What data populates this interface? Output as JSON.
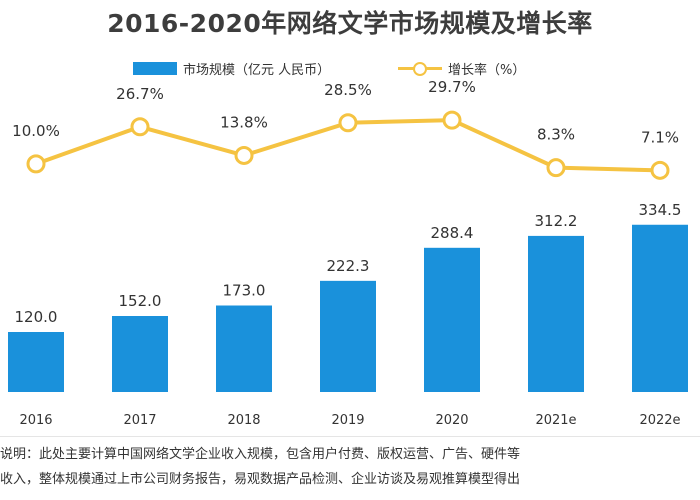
{
  "title": "2016-2020年网络文学市场规模及增长率",
  "legend": {
    "bar_label": "市场规模（亿元 人民币）",
    "line_label": "增长率（%）"
  },
  "colors": {
    "bar": "#1a91db",
    "line": "#f5c342",
    "text": "#333333"
  },
  "chart_data": {
    "type": "bar",
    "title": "2016-2020年网络文学市场规模及增长率",
    "categories": [
      "2016",
      "2017",
      "2018",
      "2019",
      "2020",
      "2021e",
      "2022e"
    ],
    "series": [
      {
        "name": "市场规模（亿元 人民币）",
        "type": "bar",
        "values": [
          120.0,
          152.0,
          173.0,
          222.3,
          288.4,
          312.2,
          334.5
        ],
        "labels": [
          "120.0",
          "152.0",
          "173.0",
          "222.3",
          "288.4",
          "312.2",
          "334.5"
        ]
      },
      {
        "name": "增长率（%）",
        "type": "line",
        "values": [
          10.0,
          26.7,
          13.8,
          28.5,
          29.7,
          8.3,
          7.1
        ],
        "labels": [
          "10.0%",
          "26.7%",
          "13.8%",
          "28.5%",
          "29.7%",
          "8.3%",
          "7.1%"
        ]
      }
    ],
    "xlabel": "",
    "ylabel": "",
    "grid": false,
    "legend_position": "top"
  },
  "footnote": {
    "line1": "说明：此处主要计算中国网络文学企业收入规模，包含用户付费、版权运营、广告、硬件等",
    "line2": "收入，整体规模通过上市公司财务报告，易观数据产品检测、企业访谈及易观推算模型得出"
  }
}
